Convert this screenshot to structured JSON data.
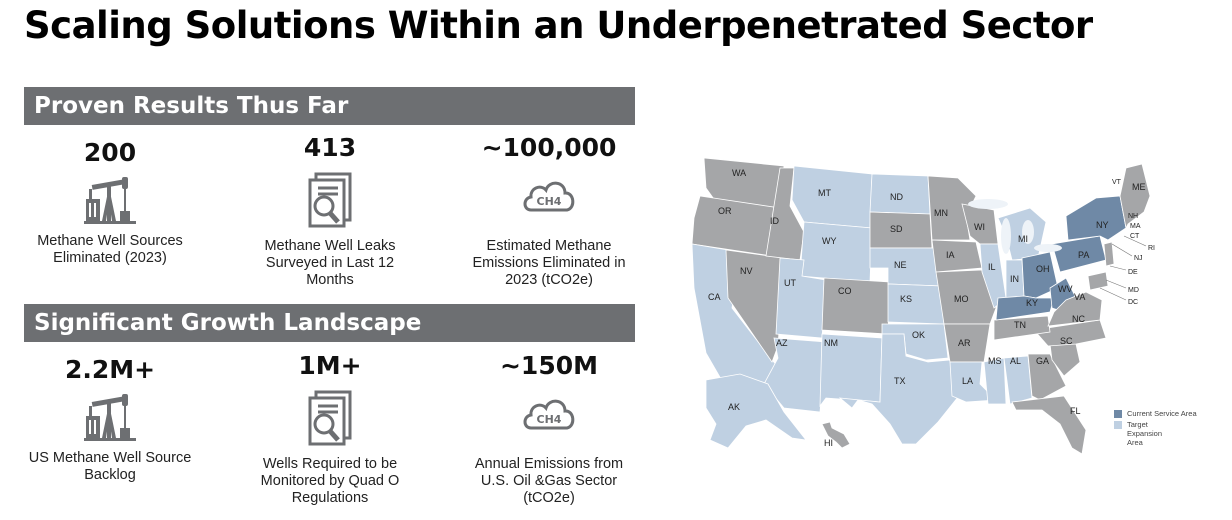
{
  "title": "Scaling Solutions Within an Underpenetrated Sector",
  "section1": {
    "heading": "Proven Results Thus Far",
    "stats": [
      {
        "value": "200",
        "icon": "pumpjack-icon",
        "caption_lines": [
          "Methane Well Sources",
          "Eliminated (2023)"
        ]
      },
      {
        "value": "413",
        "icon": "document-magnifier-icon",
        "caption_lines": [
          "Methane Well Leaks",
          "Surveyed in Last 12",
          "Months"
        ]
      },
      {
        "value": "~100,000",
        "icon": "ch4-cloud-icon",
        "caption_lines": [
          "Estimated Methane",
          "Emissions Eliminated in",
          "2023 (tCO2e)"
        ]
      }
    ]
  },
  "section2": {
    "heading": "Significant Growth Landscape",
    "stats": [
      {
        "value": "2.2M+",
        "icon": "pumpjack-icon",
        "caption_lines": [
          "US Methane Well Source",
          "Backlog"
        ]
      },
      {
        "value": "1M+",
        "icon": "document-magnifier-icon",
        "caption_lines": [
          "Wells Required to be",
          "Monitored by Quad O",
          "Regulations"
        ]
      },
      {
        "value": "~150M",
        "icon": "ch4-cloud-icon",
        "caption_lines": [
          "Annual Emissions from",
          "U.S. Oil &Gas Sector",
          "(tCO2e)"
        ]
      }
    ]
  },
  "icon_text": "CH4",
  "map": {
    "colors": {
      "current": "#6f89a6",
      "target": "#bfd0e2",
      "other": "#a5a6a8",
      "lake": "#eef3f8"
    },
    "state_labels": [
      "WA",
      "OR",
      "CA",
      "NV",
      "ID",
      "MT",
      "WY",
      "UT",
      "AZ",
      "CO",
      "NM",
      "ND",
      "SD",
      "NE",
      "KS",
      "OK",
      "TX",
      "MN",
      "IA",
      "MO",
      "AR",
      "LA",
      "WI",
      "IL",
      "MI",
      "IN",
      "OH",
      "KY",
      "TN",
      "MS",
      "AL",
      "GA",
      "FL",
      "SC",
      "NC",
      "VA",
      "WV",
      "PA",
      "NY",
      "ME",
      "VT",
      "NH",
      "MA",
      "CT",
      "RI",
      "NJ",
      "DE",
      "MD",
      "DC",
      "AK",
      "HI"
    ],
    "legend": [
      {
        "label": "Current Service Area",
        "color": "#6f89a6"
      },
      {
        "label": "Target Expansion Area",
        "color": "#bfd0e2"
      }
    ]
  }
}
